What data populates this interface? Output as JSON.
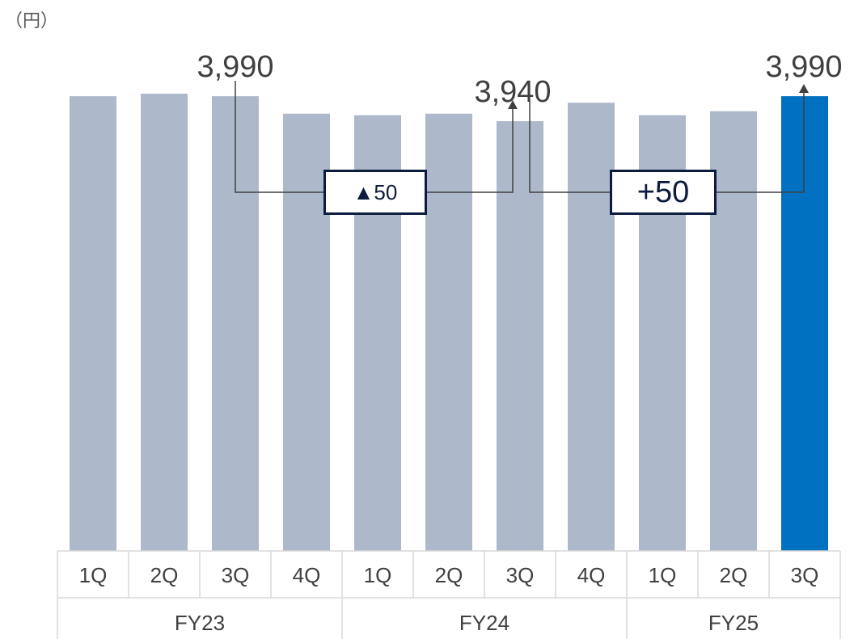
{
  "unit_label": "（円）",
  "chart_data": {
    "type": "bar",
    "title": "",
    "xlabel": "",
    "ylabel": "（円）",
    "categories": [
      "1Q",
      "2Q",
      "3Q",
      "4Q",
      "1Q",
      "2Q",
      "3Q",
      "4Q",
      "1Q",
      "2Q",
      "3Q"
    ],
    "groups": [
      {
        "label": "FY23",
        "span": 4
      },
      {
        "label": "FY24",
        "span": 4
      },
      {
        "label": "FY25",
        "span": 3
      }
    ],
    "values": [
      3990,
      3995,
      3990,
      3955,
      3952,
      3955,
      3940,
      3977,
      3952,
      3960,
      3990
    ],
    "highlight_index": 10,
    "colors": {
      "base": "#adb9ca",
      "highlight": "#0070c0",
      "connector": "#404040",
      "box_border": "#0d1b3e"
    },
    "data_labels": [
      {
        "index": 2,
        "text": "3,990"
      },
      {
        "index": 6,
        "text": "3,940"
      },
      {
        "index": 10,
        "text": "3,990"
      }
    ],
    "annotations": [
      {
        "from_index": 2,
        "to_index": 6,
        "text": "▲50"
      },
      {
        "from_index": 6,
        "to_index": 10,
        "text": "+50"
      }
    ]
  }
}
